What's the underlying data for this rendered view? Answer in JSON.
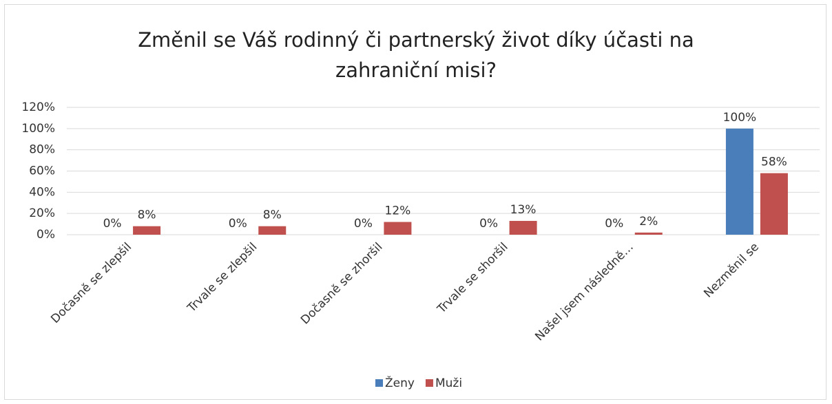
{
  "chart_data": {
    "type": "bar",
    "title": "Změnil se Váš rodinný či partnerský život díky účasti na zahraniční misi?",
    "categories": [
      "Dočasně se zlepšil",
      "Trvale se zlepšil",
      "Dočasně se zhoršil",
      "Trvale se shoršil",
      "Našel jsem následně…",
      "Nezměnil se"
    ],
    "series": [
      {
        "name": "Ženy",
        "color": "#4a7ebb",
        "values": [
          0,
          0,
          0,
          0,
          0,
          100
        ],
        "value_labels": [
          "0%",
          "0%",
          "0%",
          "0%",
          "0%",
          "100%"
        ]
      },
      {
        "name": "Muži",
        "color": "#c0504d",
        "values": [
          8,
          8,
          12,
          13,
          2,
          58
        ],
        "value_labels": [
          "8%",
          "8%",
          "12%",
          "13%",
          "2%",
          "58%"
        ]
      }
    ],
    "ylim": [
      0,
      120
    ],
    "yticks": [
      {
        "value": 0,
        "label": "0%"
      },
      {
        "value": 20,
        "label": "20%"
      },
      {
        "value": 40,
        "label": "40%"
      },
      {
        "value": 60,
        "label": "60%"
      },
      {
        "value": 80,
        "label": "80%"
      },
      {
        "value": 100,
        "label": "100%"
      },
      {
        "value": 120,
        "label": "120%"
      }
    ],
    "grid": true,
    "legend": "bottom"
  }
}
